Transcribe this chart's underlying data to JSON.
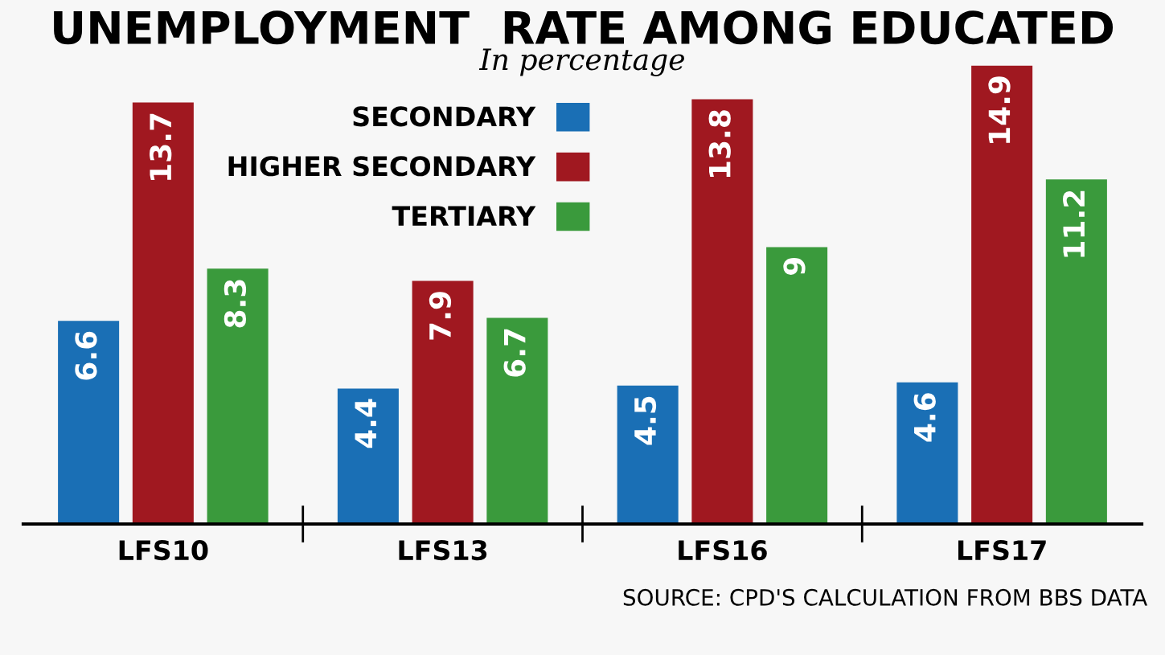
{
  "chart_data": {
    "type": "bar",
    "title": "UNEMPLOYMENT  RATE AMONG EDUCATED",
    "subtitle": "In percentage",
    "categories": [
      "LFS10",
      "LFS13",
      "LFS16",
      "LFS17"
    ],
    "series": [
      {
        "name": "SECONDARY",
        "color": "#1a6fb5",
        "values": [
          6.6,
          4.4,
          4.5,
          4.6
        ]
      },
      {
        "name": "HIGHER SECONDARY",
        "color": "#a01820",
        "values": [
          13.7,
          7.9,
          13.8,
          14.9
        ]
      },
      {
        "name": "TERTIARY",
        "color": "#3a9a3c",
        "values": [
          8.3,
          6.7,
          9,
          11.2
        ]
      }
    ],
    "data_labels": true,
    "legend": "top left",
    "grid": false,
    "annotations": [
      "SOURCE: CPD'S CALCULATION FROM BBS DATA"
    ]
  }
}
